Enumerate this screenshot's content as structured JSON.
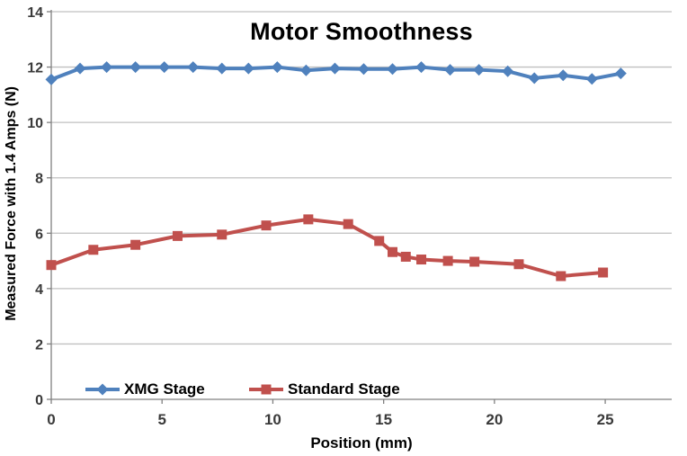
{
  "chart_data": {
    "type": "line",
    "title": "Motor Smoothness",
    "xlabel": "Position (mm)",
    "ylabel": "Measured Force with 1.4 Amps (N)",
    "xlim": [
      0,
      28
    ],
    "ylim": [
      0,
      14
    ],
    "xticks": [
      0,
      5,
      10,
      15,
      20,
      25
    ],
    "yticks": [
      0,
      2,
      4,
      6,
      8,
      10,
      12,
      14
    ],
    "grid": "horizontal",
    "legend_position": "bottom-inside",
    "series": [
      {
        "name": "XMG Stage",
        "color": "#4F81BD",
        "marker": "diamond",
        "x": [
          0,
          1.3,
          2.5,
          3.8,
          5.1,
          6.4,
          7.7,
          8.9,
          10.2,
          11.5,
          12.8,
          14.1,
          15.4,
          16.7,
          18.0,
          19.3,
          20.6,
          21.8,
          23.1,
          24.4,
          25.7
        ],
        "y": [
          11.55,
          11.95,
          12.0,
          12.0,
          12.0,
          12.0,
          11.95,
          11.95,
          12.0,
          11.88,
          11.95,
          11.93,
          11.93,
          12.0,
          11.9,
          11.9,
          11.85,
          11.6,
          11.7,
          11.57,
          11.77
        ]
      },
      {
        "name": "Standard Stage",
        "color": "#C0504D",
        "marker": "square",
        "x": [
          0,
          1.9,
          3.8,
          5.7,
          7.7,
          9.7,
          11.6,
          13.4,
          14.8,
          15.4,
          16.0,
          16.7,
          17.9,
          19.1,
          21.1,
          23.0,
          24.9
        ],
        "y": [
          4.85,
          5.4,
          5.58,
          5.9,
          5.95,
          6.28,
          6.5,
          6.33,
          5.72,
          5.32,
          5.15,
          5.05,
          5.0,
          4.97,
          4.88,
          4.45,
          4.58
        ]
      }
    ],
    "colors": {
      "gridline": "#C0C0C0",
      "axis": "#808080",
      "tick_label": "#3A3A3A",
      "title": "#000000"
    }
  }
}
